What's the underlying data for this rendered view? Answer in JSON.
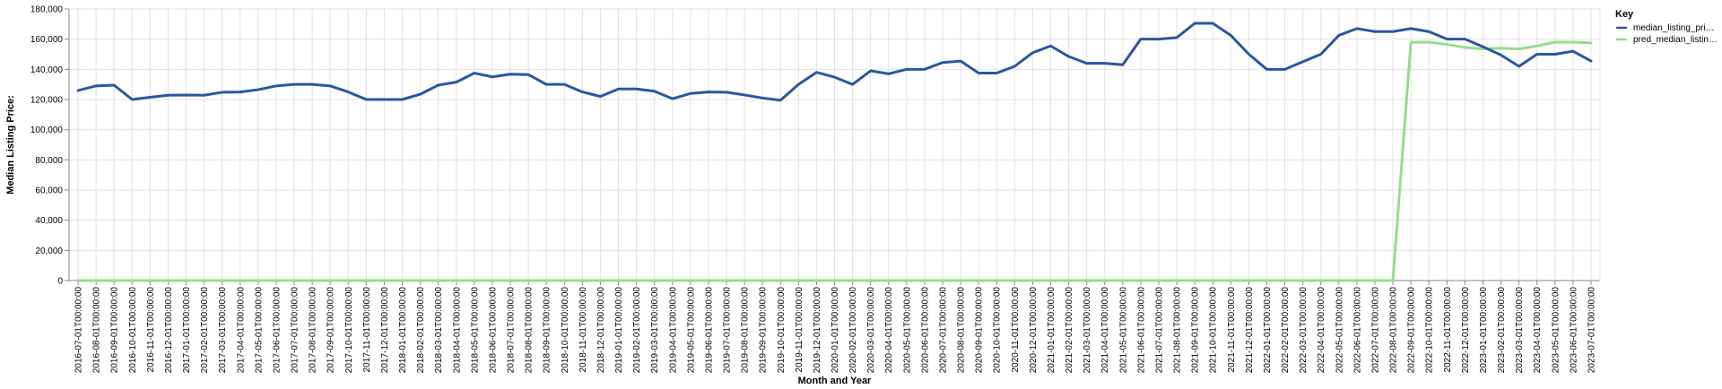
{
  "chart_data": {
    "type": "line",
    "xlabel": "Month and Year",
    "ylabel": "Median Listing Price:",
    "ylim": [
      0,
      180000
    ],
    "y_ticks": [
      "0",
      "20,000",
      "40,000",
      "60,000",
      "80,000",
      "100,000",
      "120,000",
      "140,000",
      "160,000",
      "180,000"
    ],
    "grid": true,
    "legend": {
      "title": "Key",
      "placement": "top-right",
      "entries": [
        "median_listing_pri…",
        "pred_median_listin…"
      ]
    },
    "x": [
      "2016-07-01T00:00:00",
      "2016-08-01T00:00:00",
      "2016-09-01T00:00:00",
      "2016-10-01T00:00:00",
      "2016-11-01T00:00:00",
      "2016-12-01T00:00:00",
      "2017-01-01T00:00:00",
      "2017-02-01T00:00:00",
      "2017-03-01T00:00:00",
      "2017-04-01T00:00:00",
      "2017-05-01T00:00:00",
      "2017-06-01T00:00:00",
      "2017-07-01T00:00:00",
      "2017-08-01T00:00:00",
      "2017-09-01T00:00:00",
      "2017-10-01T00:00:00",
      "2017-11-01T00:00:00",
      "2017-12-01T00:00:00",
      "2018-01-01T00:00:00",
      "2018-02-01T00:00:00",
      "2018-03-01T00:00:00",
      "2018-04-01T00:00:00",
      "2018-05-01T00:00:00",
      "2018-06-01T00:00:00",
      "2018-07-01T00:00:00",
      "2018-08-01T00:00:00",
      "2018-09-01T00:00:00",
      "2018-10-01T00:00:00",
      "2018-11-01T00:00:00",
      "2018-12-01T00:00:00",
      "2019-01-01T00:00:00",
      "2019-02-01T00:00:00",
      "2019-03-01T00:00:00",
      "2019-04-01T00:00:00",
      "2019-05-01T00:00:00",
      "2019-06-01T00:00:00",
      "2019-07-01T00:00:00",
      "2019-08-01T00:00:00",
      "2019-09-01T00:00:00",
      "2019-10-01T00:00:00",
      "2019-11-01T00:00:00",
      "2019-12-01T00:00:00",
      "2020-01-01T00:00:00",
      "2020-02-01T00:00:00",
      "2020-03-01T00:00:00",
      "2020-04-01T00:00:00",
      "2020-05-01T00:00:00",
      "2020-06-01T00:00:00",
      "2020-07-01T00:00:00",
      "2020-08-01T00:00:00",
      "2020-09-01T00:00:00",
      "2020-10-01T00:00:00",
      "2020-11-01T00:00:00",
      "2020-12-01T00:00:00",
      "2021-01-01T00:00:00",
      "2021-02-01T00:00:00",
      "2021-03-01T00:00:00",
      "2021-04-01T00:00:00",
      "2021-05-01T00:00:00",
      "2021-06-01T00:00:00",
      "2021-07-01T00:00:00",
      "2021-08-01T00:00:00",
      "2021-09-01T00:00:00",
      "2021-10-01T00:00:00",
      "2021-11-01T00:00:00",
      "2021-12-01T00:00:00",
      "2022-01-01T00:00:00",
      "2022-02-01T00:00:00",
      "2022-03-01T00:00:00",
      "2022-04-01T00:00:00",
      "2022-05-01T00:00:00",
      "2022-06-01T00:00:00",
      "2022-07-01T00:00:00",
      "2022-08-01T00:00:00",
      "2022-09-01T00:00:00",
      "2022-10-01T00:00:00",
      "2022-11-01T00:00:00",
      "2022-12-01T00:00:00",
      "2023-01-01T00:00:00",
      "2023-02-01T00:00:00",
      "2023-03-01T00:00:00",
      "2023-04-01T00:00:00",
      "2023-05-01T00:00:00",
      "2023-06-01T00:00:00",
      "2023-07-01T00:00:00"
    ],
    "series": [
      {
        "name": "median_listing_price",
        "color": "#2b579f",
        "values": [
          126000,
          129000,
          129500,
          120000,
          121500,
          122800,
          123000,
          122800,
          124800,
          125000,
          126500,
          129000,
          130000,
          130000,
          129000,
          125000,
          120000,
          120000,
          120000,
          123500,
          129500,
          131500,
          137500,
          135000,
          136800,
          136500,
          130000,
          130000,
          125000,
          122000,
          127000,
          127000,
          125500,
          120500,
          124000,
          125000,
          124800,
          123000,
          121000,
          119500,
          130000,
          138000,
          134800,
          130000,
          139000,
          137000,
          140000,
          140000,
          144500,
          145500,
          137500,
          137500,
          142000,
          151000,
          155500,
          148500,
          144000,
          144000,
          143000,
          160000,
          160000,
          161000,
          170500,
          170500,
          162500,
          150000,
          140000,
          140000,
          145000,
          150000,
          162500,
          167000,
          165000,
          165000,
          167000,
          165000,
          160000,
          160000,
          155000,
          149500,
          142000,
          150000,
          150000,
          152000,
          145500
        ]
      },
      {
        "name": "pred_median_listing_price",
        "color": "#98db8f",
        "values": [
          0,
          0,
          0,
          0,
          0,
          0,
          0,
          0,
          0,
          0,
          0,
          0,
          0,
          0,
          0,
          0,
          0,
          0,
          0,
          0,
          0,
          0,
          0,
          0,
          0,
          0,
          0,
          0,
          0,
          0,
          0,
          0,
          0,
          0,
          0,
          0,
          0,
          0,
          0,
          0,
          0,
          0,
          0,
          0,
          0,
          0,
          0,
          0,
          0,
          0,
          0,
          0,
          0,
          0,
          0,
          0,
          0,
          0,
          0,
          0,
          0,
          0,
          0,
          0,
          0,
          0,
          0,
          0,
          0,
          0,
          0,
          0,
          0,
          0,
          158000,
          158000,
          156500,
          154500,
          153500,
          154000,
          153500,
          155500,
          158000,
          158000,
          157500
        ]
      }
    ]
  }
}
